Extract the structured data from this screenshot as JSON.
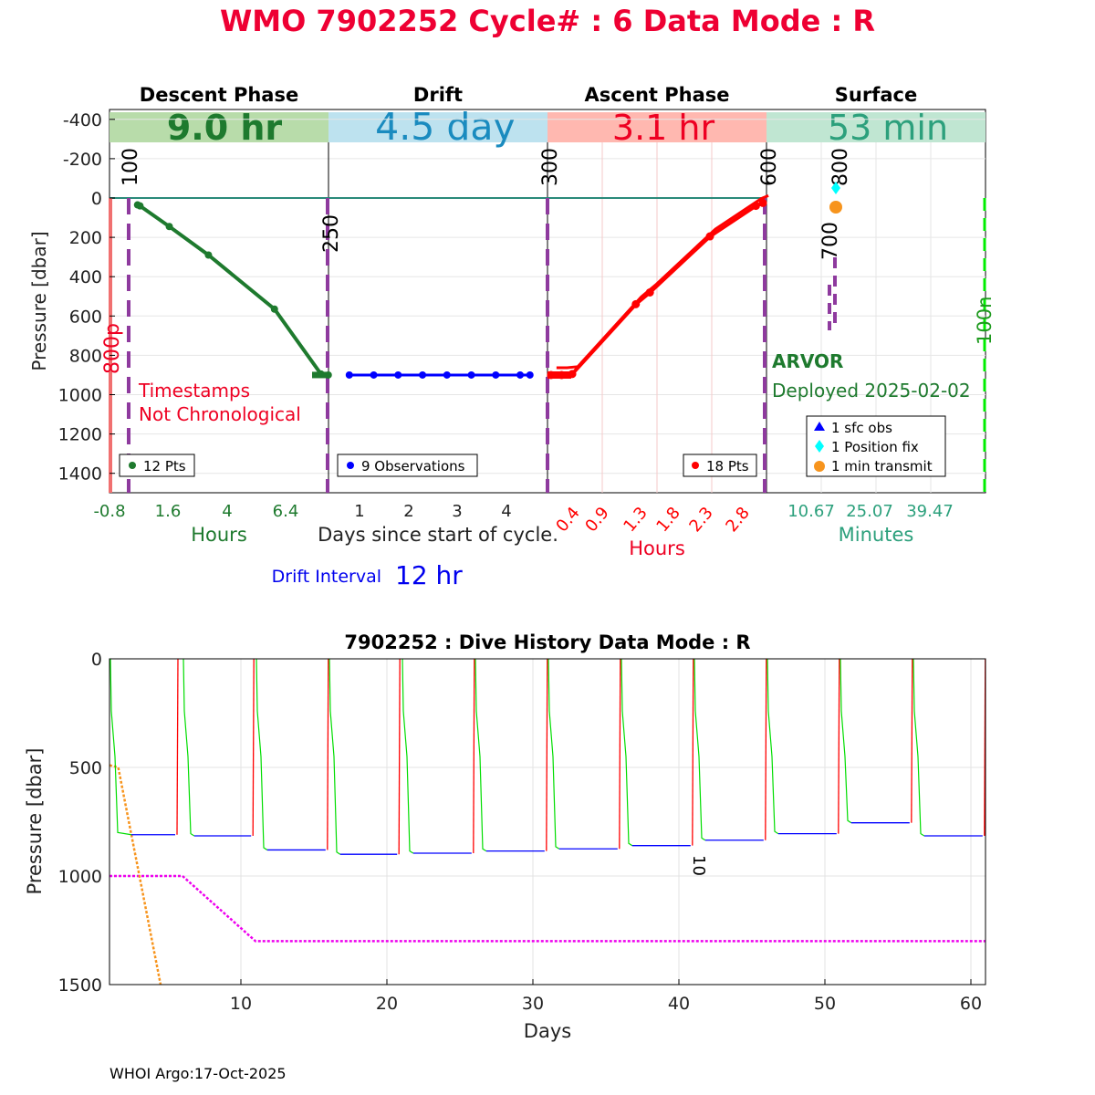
{
  "header": {
    "title": "WMO 7902252   Cycle# : 6   Data Mode : R"
  },
  "footer": {
    "credit": "WHOI Argo:17-Oct-2025"
  },
  "colors": {
    "descent": "#1e7a2e",
    "drift": "#0000ff",
    "ascent": "#ff0000",
    "surface": "#2ca07c",
    "title_red": "#ee0033",
    "purple": "#8e3a9e",
    "orange": "#f7941d",
    "cyan": "#00ffff",
    "magenta": "#ee00ee",
    "bright_green": "#00ff00"
  },
  "chart_data": [
    {
      "type": "line",
      "title": "WMO 7902252   Cycle# : 6   Data Mode : R",
      "ylabel": "Pressure [dbar]",
      "ylim": [
        -500,
        1500
      ],
      "y_reversed": true,
      "yticks": [
        "-400",
        "-200",
        "0",
        "200",
        "400",
        "600",
        "800",
        "1000",
        "1200",
        "1400"
      ],
      "xlabel_center": "Days since start of cycle.",
      "drift_interval": {
        "label": "Drift Interval",
        "value": "12 hr"
      },
      "phases": [
        {
          "name": "Descent Phase",
          "duration": "9.0 hr",
          "xlabel": "Hours",
          "xticks": [
            "-0.8",
            "1.6",
            "4",
            "6.4"
          ],
          "points_label": "12 Pts",
          "x_hours": [
            0.4,
            0.5,
            1.7,
            3.3,
            6.0,
            7.9,
            8.2
          ],
          "pressure": [
            35,
            40,
            145,
            290,
            565,
            895,
            900
          ]
        },
        {
          "name": "Drift",
          "duration": "4.5 day",
          "xlabel": "",
          "xticks": [
            "1",
            "2",
            "3",
            "4"
          ],
          "points_label": "9 Observations",
          "x_days": [
            0.8,
            1.3,
            1.8,
            2.3,
            2.8,
            3.3,
            3.8,
            4.3,
            4.5
          ],
          "pressure": [
            900,
            900,
            900,
            900,
            900,
            900,
            900,
            900,
            900
          ]
        },
        {
          "name": "Ascent Phase",
          "duration": "3.1 hr",
          "xlabel": "Hours",
          "xticks": [
            "0.4",
            "0.9",
            "1.3",
            "1.8",
            "2.3",
            "2.8"
          ],
          "points_label": "18 Pts",
          "x_hours": [
            0.05,
            0.2,
            0.35,
            1.25,
            1.45,
            2.3,
            2.95,
            3.05
          ],
          "pressure": [
            900,
            900,
            895,
            540,
            480,
            195,
            40,
            25
          ]
        },
        {
          "name": "Surface",
          "duration": "53 min",
          "xlabel": "Minutes",
          "xticks": [
            "10.67",
            "25.07",
            "39.47"
          ],
          "legend": [
            "1 sfc obs",
            "1 Position fix",
            "1 min transmit"
          ]
        }
      ],
      "annotations": {
        "warning_line1": "Timestamps",
        "warning_line2": "Not Chronological",
        "float_type": "ARVOR",
        "deployed": "Deployed 2025-02-02",
        "park_pressure": "800p",
        "surface_right": "100n",
        "marks": [
          "100",
          "250",
          "300",
          "600",
          "800",
          "700"
        ]
      }
    },
    {
      "type": "line",
      "title": "7902252 : Dive History      Data Mode : R",
      "xlabel": "Days",
      "ylabel": "Pressure [dbar]",
      "xlim": [
        1,
        61
      ],
      "ylim": [
        0,
        1500
      ],
      "y_reversed": true,
      "xticks": [
        "10",
        "20",
        "30",
        "40",
        "50",
        "60"
      ],
      "yticks": [
        "0",
        "500",
        "1000",
        "1500"
      ],
      "cycle_label": "10",
      "cycles": [
        {
          "start": 1.0,
          "drift_start": 2.5,
          "drift_end": 5.5,
          "drift_p": 810
        },
        {
          "start": 6.0,
          "drift_start": 6.8,
          "drift_end": 10.7,
          "drift_p": 815
        },
        {
          "start": 11.0,
          "drift_start": 11.8,
          "drift_end": 15.8,
          "drift_p": 880
        },
        {
          "start": 16.0,
          "drift_start": 16.8,
          "drift_end": 20.7,
          "drift_p": 900
        },
        {
          "start": 21.0,
          "drift_start": 21.8,
          "drift_end": 25.8,
          "drift_p": 895
        },
        {
          "start": 26.0,
          "drift_start": 26.8,
          "drift_end": 30.8,
          "drift_p": 885
        },
        {
          "start": 31.0,
          "drift_start": 31.8,
          "drift_end": 35.8,
          "drift_p": 875
        },
        {
          "start": 36.0,
          "drift_start": 36.8,
          "drift_end": 40.8,
          "drift_p": 860
        },
        {
          "start": 41.0,
          "drift_start": 41.8,
          "drift_end": 45.8,
          "drift_p": 835
        },
        {
          "start": 46.0,
          "drift_start": 46.8,
          "drift_end": 50.8,
          "drift_p": 805
        },
        {
          "start": 51.0,
          "drift_start": 51.8,
          "drift_end": 55.8,
          "drift_p": 755
        },
        {
          "start": 56.0,
          "drift_start": 56.8,
          "drift_end": 60.8,
          "drift_p": 815
        }
      ],
      "park_depth_line": {
        "x": [
          1,
          6,
          11,
          61
        ],
        "y": [
          1000,
          1000,
          1300,
          1300
        ]
      },
      "profile_depth_line": {
        "x": [
          1,
          1.6,
          4.5
        ],
        "y": [
          490,
          500,
          1500
        ]
      }
    }
  ]
}
